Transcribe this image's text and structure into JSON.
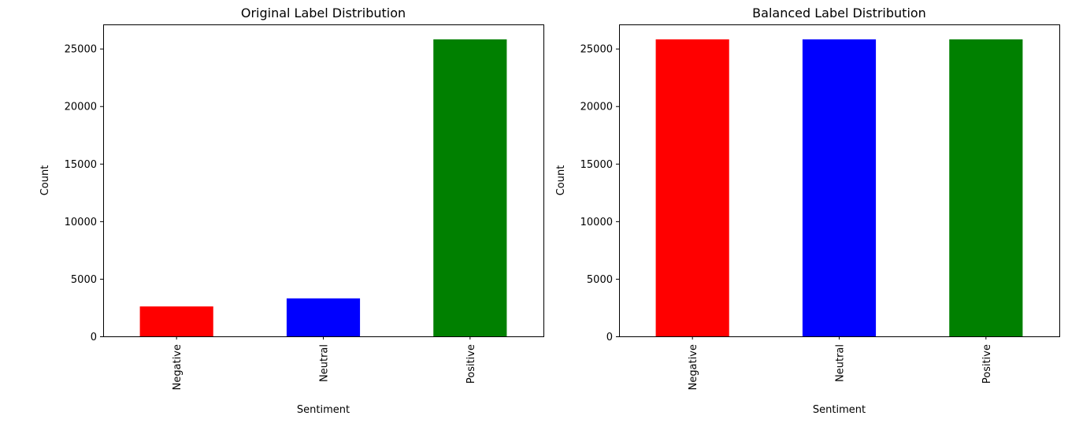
{
  "chart_data": [
    {
      "type": "bar",
      "title": "Original Label Distribution",
      "xlabel": "Sentiment",
      "ylabel": "Count",
      "categories": [
        "Negative",
        "Neutral",
        "Positive"
      ],
      "values": [
        2600,
        3300,
        25800
      ],
      "colors": [
        "#ff0000",
        "#0000ff",
        "#008000"
      ],
      "ylim": [
        0,
        27100
      ],
      "yticks": [
        0,
        5000,
        10000,
        15000,
        20000,
        25000
      ],
      "grid": false,
      "legend": "none"
    },
    {
      "type": "bar",
      "title": "Balanced Label Distribution",
      "xlabel": "Sentiment",
      "ylabel": "Count",
      "categories": [
        "Negative",
        "Neutral",
        "Positive"
      ],
      "values": [
        25800,
        25800,
        25800
      ],
      "colors": [
        "#ff0000",
        "#0000ff",
        "#008000"
      ],
      "ylim": [
        0,
        27100
      ],
      "yticks": [
        0,
        5000,
        10000,
        15000,
        20000,
        25000
      ],
      "grid": false,
      "legend": "none"
    }
  ]
}
